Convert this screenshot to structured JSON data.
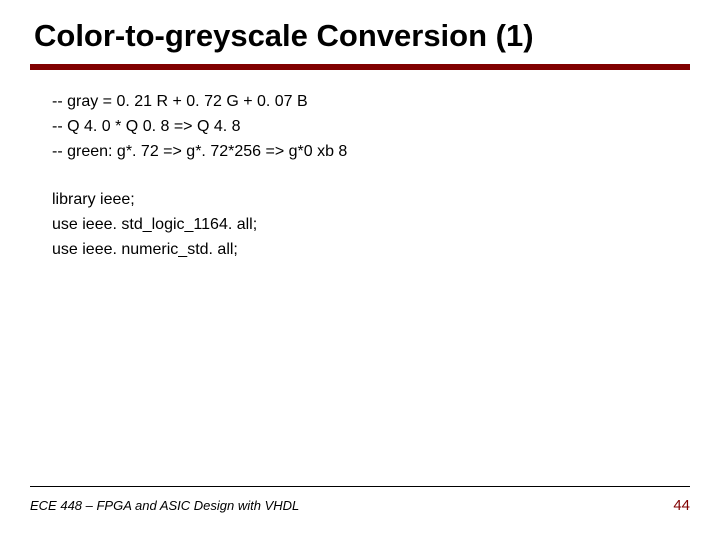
{
  "title": "Color-to-greyscale Conversion (1)",
  "colors": {
    "accent": "#800000",
    "text": "#000000",
    "background": "#ffffff"
  },
  "code": {
    "line1": "-- gray = 0. 21 R + 0. 72 G + 0. 07 B",
    "line2": "-- Q 4. 0 * Q 0. 8 => Q 4. 8",
    "line3": "-- green: g*. 72 => g*. 72*256 => g*0 xb 8",
    "line4": "library ieee;",
    "line5": "use ieee. std_logic_1164. all;",
    "line6": "use ieee. numeric_std. all;"
  },
  "footer": {
    "course": "ECE 448 – FPGA and ASIC Design with VHDL",
    "page": "44"
  }
}
